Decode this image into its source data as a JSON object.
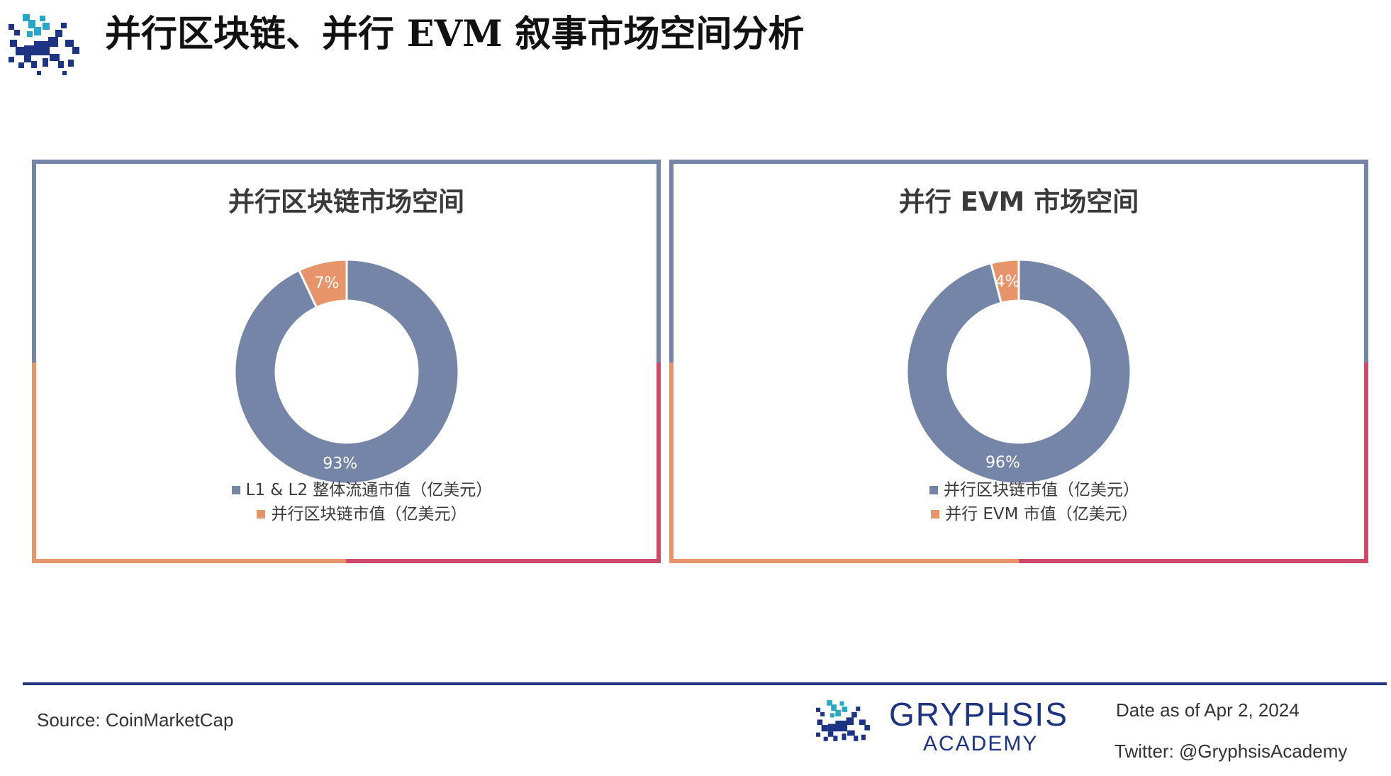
{
  "page_title": "并行区块链、并行 EVM 叙事市场空间分析",
  "colors": {
    "slate_blue": "#7585a8",
    "orange": "#e8946a",
    "crimson": "#cf4a6a",
    "navy": "#1d3384",
    "teal": "#28a6c9"
  },
  "chart_data": [
    {
      "type": "pie",
      "subtype": "donut",
      "title": "并行区块链市场空间",
      "labels": [
        "L1 & L2 整体流通市值（亿美元）",
        "并行区块链市值（亿美元）"
      ],
      "values": [
        93,
        7
      ],
      "data_labels": [
        "93%",
        "7%"
      ],
      "colors": [
        "#7585a8",
        "#e8946a"
      ],
      "legend_position": "bottom"
    },
    {
      "type": "pie",
      "subtype": "donut",
      "title": "并行 EVM 市场空间",
      "labels": [
        "并行区块链市值（亿美元）",
        "并行 EVM 市值（亿美元）"
      ],
      "values": [
        96,
        4
      ],
      "data_labels": [
        "96%",
        "4%"
      ],
      "colors": [
        "#7585a8",
        "#e8946a"
      ],
      "legend_position": "bottom"
    }
  ],
  "footer": {
    "source": "Source: CoinMarketCap",
    "brand_name": "GRYPHSIS",
    "brand_sub": "ACADEMY",
    "date": "Date as of Apr 2, 2024",
    "twitter": "Twitter: @GryphsisAcademy"
  }
}
